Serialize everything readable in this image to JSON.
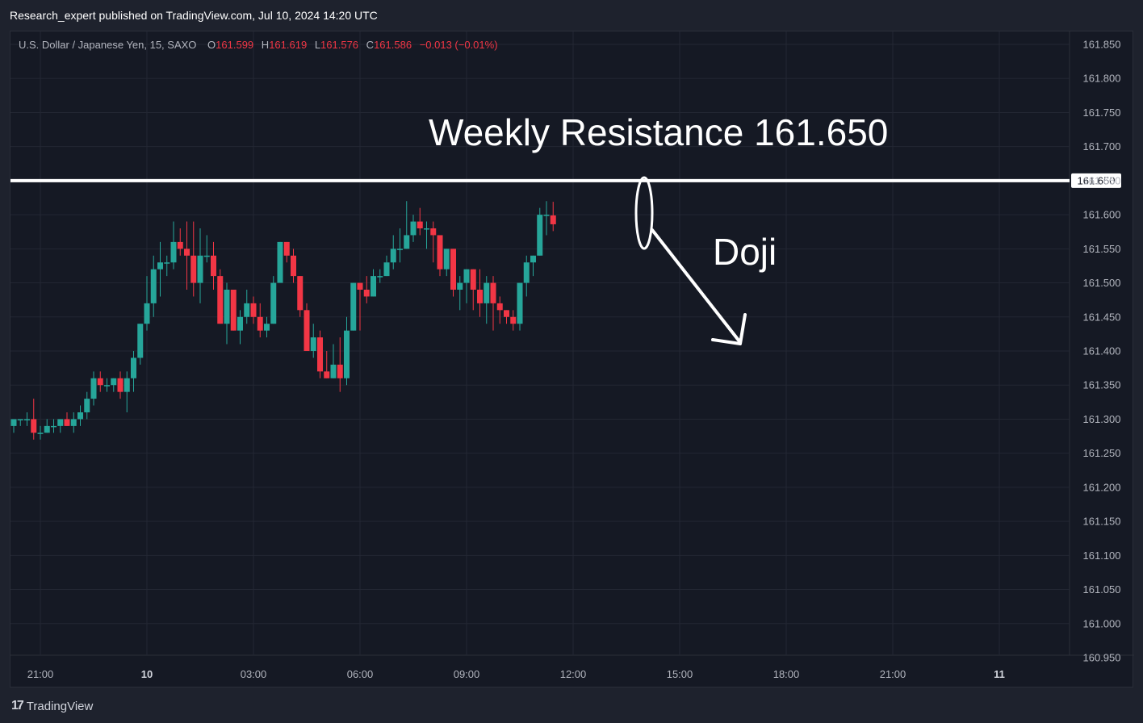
{
  "header": {
    "published": "Research_expert published on TradingView.com, Jul 10, 2024 14:20 UTC"
  },
  "legend": {
    "symbol": "U.S. Dollar / Japanese Yen, 15, SAXO",
    "o_label": "O",
    "o_value": "161.599",
    "h_label": "H",
    "h_value": "161.619",
    "l_label": "L",
    "l_value": "161.576",
    "c_label": "C",
    "c_value": "161.586",
    "change": "−0.013 (−0.01%)"
  },
  "annotations": {
    "resistance_text": "Weekly Resistance 161.650",
    "doji_text": "Doji",
    "resistance_level": 161.65,
    "resistance_tag": "161.650"
  },
  "footer": {
    "brand": "TradingView",
    "brand_mark": "17"
  },
  "colors": {
    "up": "#26a69a",
    "down": "#f23645",
    "grid": "#232733",
    "text": "#b2b5be",
    "annotation": "#ffffff",
    "background": "#151924"
  },
  "chart_data": {
    "type": "candlestick",
    "title": "U.S. Dollar / Japanese Yen, 15, SAXO",
    "y_ticks": [
      "161.850",
      "161.800",
      "161.750",
      "161.700",
      "161.650",
      "161.600",
      "161.550",
      "161.500",
      "161.450",
      "161.400",
      "161.350",
      "161.300",
      "161.250",
      "161.200",
      "161.150",
      "161.100",
      "161.050",
      "161.000",
      "160.950"
    ],
    "x_ticks": [
      {
        "label": "21:00",
        "bold": false,
        "bar": 4
      },
      {
        "label": "10",
        "bold": true,
        "bar": 20
      },
      {
        "label": "03:00",
        "bold": false,
        "bar": 36
      },
      {
        "label": "06:00",
        "bold": false,
        "bar": 52
      },
      {
        "label": "09:00",
        "bold": false,
        "bar": 68
      },
      {
        "label": "12:00",
        "bold": false,
        "bar": 84
      },
      {
        "label": "15:00",
        "bold": false,
        "bar": 100
      },
      {
        "label": "18:00",
        "bold": false,
        "bar": 116
      },
      {
        "label": "21:00",
        "bold": false,
        "bar": 132
      },
      {
        "label": "11",
        "bold": true,
        "bar": 148
      }
    ],
    "ylim": [
      160.95,
      161.85
    ],
    "candles": [
      [
        161.29,
        161.3,
        161.28,
        161.3
      ],
      [
        161.3,
        161.3,
        161.29,
        161.3
      ],
      [
        161.3,
        161.31,
        161.29,
        161.3
      ],
      [
        161.3,
        161.33,
        161.27,
        161.28
      ],
      [
        161.28,
        161.29,
        161.27,
        161.28
      ],
      [
        161.28,
        161.3,
        161.28,
        161.29
      ],
      [
        161.29,
        161.3,
        161.28,
        161.29
      ],
      [
        161.29,
        161.3,
        161.28,
        161.3
      ],
      [
        161.3,
        161.31,
        161.29,
        161.29
      ],
      [
        161.29,
        161.31,
        161.28,
        161.3
      ],
      [
        161.3,
        161.32,
        161.29,
        161.31
      ],
      [
        161.31,
        161.34,
        161.3,
        161.33
      ],
      [
        161.33,
        161.37,
        161.32,
        161.36
      ],
      [
        161.36,
        161.37,
        161.34,
        161.35
      ],
      [
        161.35,
        161.36,
        161.34,
        161.35
      ],
      [
        161.35,
        161.36,
        161.34,
        161.36
      ],
      [
        161.36,
        161.37,
        161.33,
        161.34
      ],
      [
        161.34,
        161.37,
        161.31,
        161.36
      ],
      [
        161.36,
        161.4,
        161.34,
        161.39
      ],
      [
        161.39,
        161.44,
        161.38,
        161.44
      ],
      [
        161.44,
        161.51,
        161.43,
        161.47
      ],
      [
        161.47,
        161.54,
        161.45,
        161.52
      ],
      [
        161.52,
        161.56,
        161.48,
        161.53
      ],
      [
        161.53,
        161.54,
        161.51,
        161.53
      ],
      [
        161.53,
        161.59,
        161.52,
        161.56
      ],
      [
        161.56,
        161.58,
        161.54,
        161.55
      ],
      [
        161.55,
        161.59,
        161.49,
        161.54
      ],
      [
        161.54,
        161.59,
        161.48,
        161.5
      ],
      [
        161.5,
        161.58,
        161.47,
        161.54
      ],
      [
        161.54,
        161.57,
        161.53,
        161.54
      ],
      [
        161.54,
        161.56,
        161.49,
        161.51
      ],
      [
        161.51,
        161.52,
        161.44,
        161.44
      ],
      [
        161.44,
        161.5,
        161.41,
        161.49
      ],
      [
        161.49,
        161.49,
        161.43,
        161.43
      ],
      [
        161.43,
        161.46,
        161.41,
        161.45
      ],
      [
        161.45,
        161.49,
        161.44,
        161.47
      ],
      [
        161.47,
        161.48,
        161.44,
        161.45
      ],
      [
        161.45,
        161.47,
        161.42,
        161.43
      ],
      [
        161.43,
        161.45,
        161.42,
        161.44
      ],
      [
        161.44,
        161.51,
        161.44,
        161.5
      ],
      [
        161.5,
        161.56,
        161.5,
        161.56
      ],
      [
        161.56,
        161.56,
        161.53,
        161.54
      ],
      [
        161.54,
        161.55,
        161.5,
        161.51
      ],
      [
        161.51,
        161.51,
        161.45,
        161.46
      ],
      [
        161.46,
        161.47,
        161.4,
        161.4
      ],
      [
        161.4,
        161.44,
        161.39,
        161.42
      ],
      [
        161.42,
        161.43,
        161.36,
        161.37
      ],
      [
        161.37,
        161.4,
        161.36,
        161.36
      ],
      [
        161.36,
        161.41,
        161.36,
        161.38
      ],
      [
        161.38,
        161.42,
        161.34,
        161.36
      ],
      [
        161.36,
        161.45,
        161.35,
        161.43
      ],
      [
        161.43,
        161.5,
        161.43,
        161.5
      ],
      [
        161.5,
        161.5,
        161.43,
        161.49
      ],
      [
        161.49,
        161.51,
        161.47,
        161.48
      ],
      [
        161.48,
        161.52,
        161.48,
        161.51
      ],
      [
        161.51,
        161.52,
        161.5,
        161.51
      ],
      [
        161.51,
        161.54,
        161.51,
        161.53
      ],
      [
        161.53,
        161.57,
        161.52,
        161.55
      ],
      [
        161.55,
        161.58,
        161.53,
        161.55
      ],
      [
        161.55,
        161.62,
        161.55,
        161.57
      ],
      [
        161.57,
        161.6,
        161.56,
        161.59
      ],
      [
        161.59,
        161.61,
        161.57,
        161.58
      ],
      [
        161.58,
        161.59,
        161.55,
        161.58
      ],
      [
        161.58,
        161.59,
        161.53,
        161.57
      ],
      [
        161.57,
        161.57,
        161.51,
        161.52
      ],
      [
        161.52,
        161.55,
        161.51,
        161.55
      ],
      [
        161.55,
        161.55,
        161.48,
        161.49
      ],
      [
        161.49,
        161.51,
        161.46,
        161.5
      ],
      [
        161.5,
        161.52,
        161.47,
        161.52
      ],
      [
        161.52,
        161.52,
        161.46,
        161.49
      ],
      [
        161.49,
        161.52,
        161.45,
        161.47
      ],
      [
        161.47,
        161.51,
        161.44,
        161.5
      ],
      [
        161.5,
        161.51,
        161.43,
        161.47
      ],
      [
        161.47,
        161.48,
        161.44,
        161.46
      ],
      [
        161.46,
        161.46,
        161.44,
        161.45
      ],
      [
        161.45,
        161.46,
        161.43,
        161.44
      ],
      [
        161.44,
        161.5,
        161.43,
        161.5
      ],
      [
        161.5,
        161.54,
        161.48,
        161.53
      ],
      [
        161.53,
        161.54,
        161.51,
        161.54
      ],
      [
        161.54,
        161.61,
        161.54,
        161.6
      ],
      [
        161.6,
        161.62,
        161.57,
        161.6
      ],
      [
        161.599,
        161.619,
        161.576,
        161.586
      ]
    ]
  }
}
